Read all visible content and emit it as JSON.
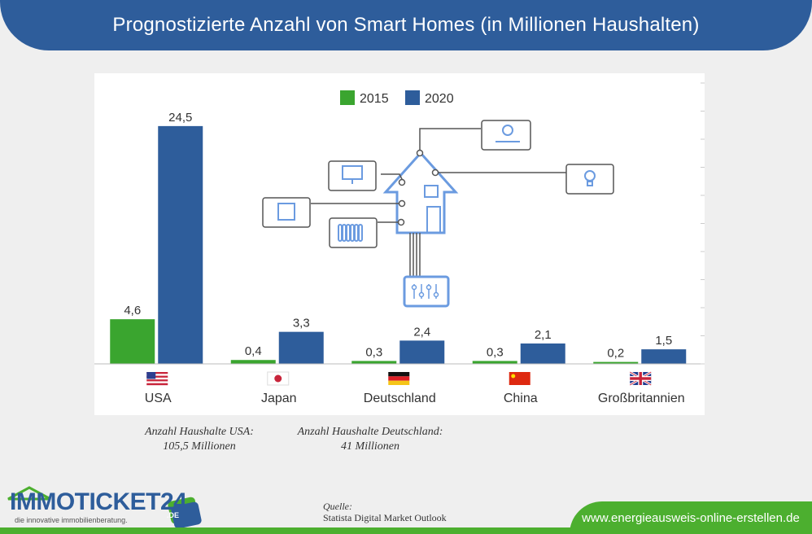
{
  "title": "Prognostizierte Anzahl von Smart Homes (in Millionen Haushalten)",
  "chart_data": {
    "type": "bar",
    "categories": [
      "USA",
      "Japan",
      "Deutschland",
      "China",
      "Großbritannien"
    ],
    "series": [
      {
        "name": "2015",
        "values": [
          4.6,
          0.4,
          0.3,
          0.3,
          0.2
        ],
        "labels": [
          "4,6",
          "0,4",
          "0,3",
          "0,3",
          "0,2"
        ],
        "color": "#3aa52f"
      },
      {
        "name": "2020",
        "values": [
          24.5,
          3.3,
          2.4,
          2.1,
          1.5
        ],
        "labels": [
          "24,5",
          "3,3",
          "2,4",
          "2,1",
          "1,5"
        ],
        "color": "#2e5d9b"
      }
    ],
    "ylim": [
      0,
      26
    ],
    "legend_position": "top-center",
    "grid": false
  },
  "notes": {
    "usa_line1": "Anzahl Haushalte USA:",
    "usa_line2": "105,5 Millionen",
    "de_line1": "Anzahl Haushalte Deutschland:",
    "de_line2": "41 Millionen"
  },
  "source": {
    "label": "Quelle:",
    "text": "Statista Digital Market Outlook"
  },
  "logo": {
    "name": "IMMOTICKET24",
    "badge": ".DE",
    "tagline": "die innovative immobilienberatung."
  },
  "website": "www.energieausweis-online-erstellen.de",
  "icons": [
    "house-icon",
    "monitor-icon",
    "oven-icon",
    "radiator-icon",
    "sun-icon",
    "lightbulb-icon",
    "control-panel-icon"
  ],
  "colors": {
    "banner": "#2e5d9b",
    "green": "#4caf2f",
    "bar2015": "#3aa52f",
    "bar2020": "#2e5d9b",
    "illustration": "#6b9be0"
  }
}
